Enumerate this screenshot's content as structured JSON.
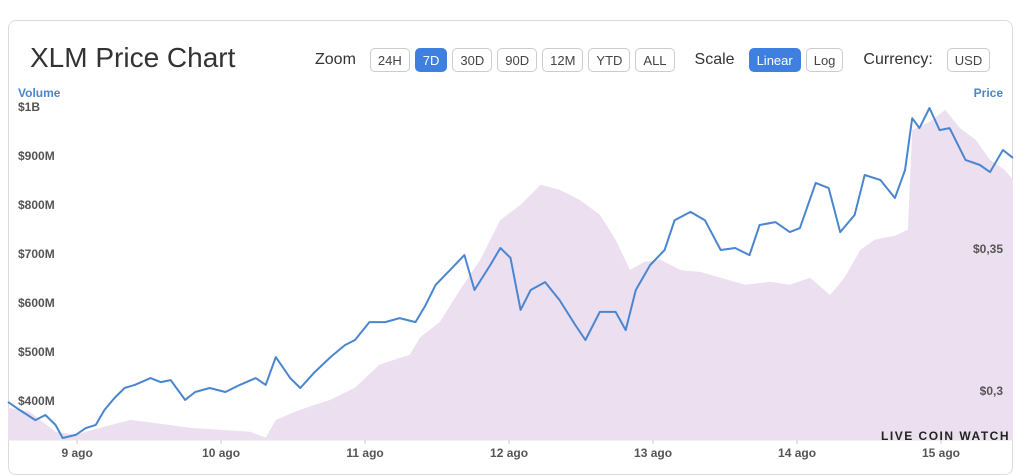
{
  "header": {
    "title": "XLM Price Chart"
  },
  "controls": {
    "zoom": {
      "label": "Zoom",
      "options": [
        "24H",
        "7D",
        "30D",
        "90D",
        "12M",
        "YTD",
        "ALL"
      ],
      "active": 1
    },
    "scale": {
      "label": "Scale",
      "options": [
        "Linear",
        "Log"
      ],
      "active": 0
    },
    "currency": {
      "label": "Currency:",
      "options": [
        "USD"
      ],
      "active": null
    }
  },
  "watermark": "LIVE COIN WATCH",
  "chart_data": {
    "type": "line",
    "xlim": [
      8.52,
      15.5
    ],
    "xticks": [
      {
        "value": 9,
        "label": "9 ago"
      },
      {
        "value": 10,
        "label": "10 ago"
      },
      {
        "value": 11,
        "label": "11 ago"
      },
      {
        "value": 12,
        "label": "12 ago"
      },
      {
        "value": 13,
        "label": "13 ago"
      },
      {
        "value": 14,
        "label": "14 ago"
      },
      {
        "value": 15,
        "label": "15 ago"
      }
    ],
    "ylim": [
      322,
      1016
    ],
    "yticks": [
      {
        "value": 400,
        "label": "$400M"
      },
      {
        "value": 500,
        "label": "$500M"
      },
      {
        "value": 600,
        "label": "$600M"
      },
      {
        "value": 700,
        "label": "$700M"
      },
      {
        "value": 800,
        "label": "$800M"
      },
      {
        "value": 900,
        "label": "$900M"
      },
      {
        "value": 1000,
        "label": "$1B"
      }
    ],
    "y2lim": [
      0.2831,
      0.4028
    ],
    "y2ticks": [
      {
        "value": 0.3,
        "label": "$0,3"
      },
      {
        "value": 0.35,
        "label": "$0,35"
      }
    ],
    "series": [
      {
        "name": "Volume",
        "kind": "area",
        "color": "#ecdff0",
        "label_color": "#4a86d0",
        "x": [
          8.52,
          8.67,
          8.85,
          8.99,
          9.16,
          9.37,
          9.58,
          9.78,
          9.99,
          10.2,
          10.31,
          10.38,
          10.55,
          10.76,
          10.93,
          11.1,
          11.31,
          11.38,
          11.52,
          11.66,
          11.8,
          11.94,
          12.08,
          12.22,
          12.35,
          12.49,
          12.63,
          12.74,
          12.84,
          12.94,
          13.05,
          13.19,
          13.33,
          13.47,
          13.64,
          13.81,
          13.95,
          14.09,
          14.23,
          14.33,
          14.44,
          14.54,
          14.68,
          14.77,
          14.8,
          14.92,
          15.03,
          15.13,
          15.24,
          15.34,
          15.44,
          15.5
        ],
        "values": [
          388,
          380,
          339,
          333,
          347,
          363,
          355,
          347,
          343,
          339,
          327,
          363,
          384,
          404,
          429,
          476,
          496,
          531,
          563,
          629,
          690,
          771,
          802,
          843,
          833,
          812,
          782,
          731,
          669,
          686,
          690,
          669,
          665,
          653,
          639,
          645,
          639,
          653,
          618,
          653,
          710,
          731,
          739,
          751,
          955,
          971,
          996,
          959,
          935,
          894,
          874,
          853
        ]
      },
      {
        "name": "Price",
        "kind": "line",
        "axis": "y2",
        "color": "#4a86d0",
        "label_color": "#4a86d0",
        "x": [
          8.52,
          8.6,
          8.71,
          8.78,
          8.85,
          8.9,
          8.99,
          9.06,
          9.13,
          9.19,
          9.26,
          9.33,
          9.4,
          9.51,
          9.58,
          9.65,
          9.75,
          9.82,
          9.92,
          10.03,
          10.13,
          10.24,
          10.31,
          10.38,
          10.48,
          10.55,
          10.65,
          10.76,
          10.86,
          10.93,
          11.03,
          11.14,
          11.24,
          11.35,
          11.42,
          11.49,
          11.59,
          11.69,
          11.76,
          11.87,
          11.94,
          12.01,
          12.08,
          12.15,
          12.25,
          12.35,
          12.46,
          12.53,
          12.63,
          12.74,
          12.81,
          12.88,
          12.98,
          13.08,
          13.15,
          13.26,
          13.36,
          13.47,
          13.57,
          13.67,
          13.74,
          13.85,
          13.95,
          14.02,
          14.13,
          14.22,
          14.3,
          14.4,
          14.47,
          14.58,
          14.68,
          14.75,
          14.8,
          14.85,
          14.92,
          14.99,
          15.06,
          15.17,
          15.27,
          15.34,
          15.43,
          15.5
        ],
        "values": [
          0.2965,
          0.2937,
          0.2901,
          0.2919,
          0.2884,
          0.2838,
          0.2849,
          0.2873,
          0.2884,
          0.2937,
          0.2979,
          0.3014,
          0.3025,
          0.3049,
          0.3035,
          0.3042,
          0.2972,
          0.3,
          0.3014,
          0.3,
          0.3025,
          0.3049,
          0.3025,
          0.3123,
          0.3049,
          0.3014,
          0.307,
          0.3123,
          0.3165,
          0.3183,
          0.3246,
          0.3246,
          0.326,
          0.3246,
          0.3306,
          0.3377,
          0.3429,
          0.3482,
          0.3359,
          0.3447,
          0.3507,
          0.3472,
          0.3289,
          0.3359,
          0.3387,
          0.3324,
          0.3236,
          0.3183,
          0.3282,
          0.3282,
          0.3218,
          0.3359,
          0.3447,
          0.35,
          0.3605,
          0.3634,
          0.3605,
          0.35,
          0.3507,
          0.3482,
          0.3588,
          0.3598,
          0.3563,
          0.3577,
          0.3736,
          0.3718,
          0.3563,
          0.3623,
          0.3764,
          0.3746,
          0.3683,
          0.3781,
          0.3964,
          0.3929,
          0.4,
          0.3922,
          0.3929,
          0.3817,
          0.3799,
          0.3774,
          0.3852,
          0.3824
        ]
      }
    ]
  }
}
